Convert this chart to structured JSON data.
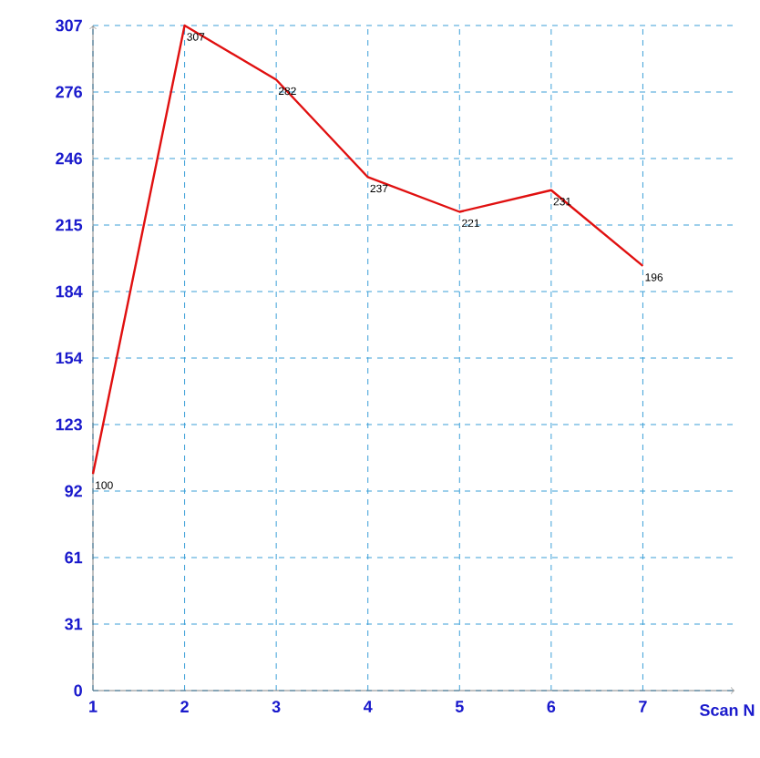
{
  "chart_data": {
    "type": "line",
    "xlabel": "Scan N",
    "x": [
      1,
      2,
      3,
      4,
      5,
      6,
      7
    ],
    "values": [
      100,
      307,
      282,
      237,
      221,
      231,
      196
    ],
    "color": "#e01010",
    "data_labels": true,
    "xlim": [
      1,
      8
    ],
    "ylim": [
      0,
      307
    ],
    "xticks": [
      1,
      2,
      3,
      4,
      5,
      6,
      7
    ],
    "yticks": [
      0,
      {
        "value": 30.7,
        "label": "31"
      },
      {
        "value": 61.4,
        "label": "61"
      },
      {
        "value": 92.1,
        "label": "92"
      },
      {
        "value": 122.8,
        "label": "123"
      },
      {
        "value": 153.5,
        "label": "154"
      },
      {
        "value": 184.2,
        "label": "184"
      },
      {
        "value": 214.9,
        "label": "215"
      },
      {
        "value": 245.6,
        "label": "246"
      },
      {
        "value": 276.3,
        "label": "276"
      },
      307
    ],
    "grid": true,
    "marker": "none",
    "line_style": "solid"
  }
}
